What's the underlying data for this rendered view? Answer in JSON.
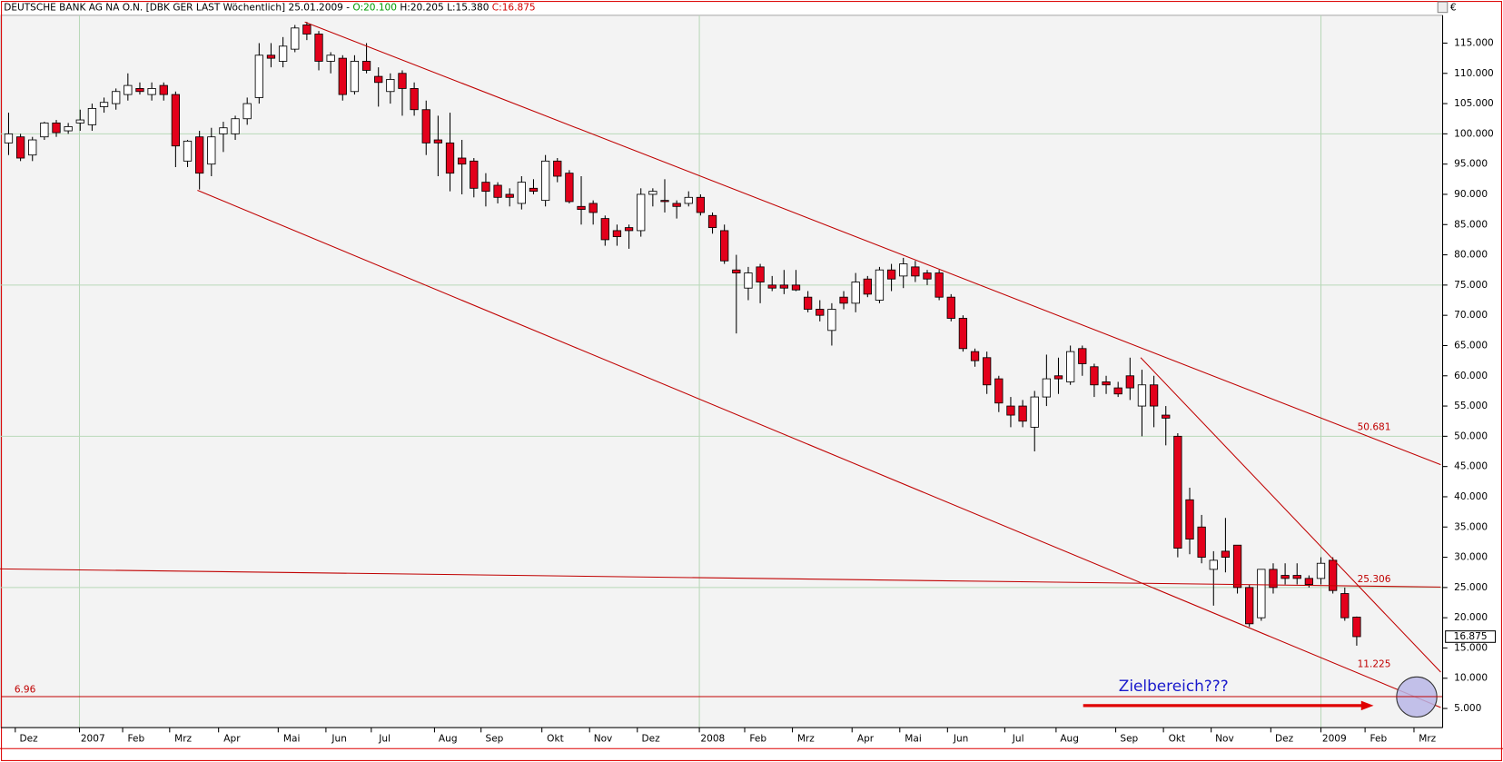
{
  "header": {
    "title": "DEUTSCHE BANK AG NA O.N. [DBK GER LAST Wöchentlich] 25.01.2009 -",
    "open": "O:20.100",
    "high": "H:20.205",
    "low": "L:15.380",
    "close": "C:16.875"
  },
  "chart_data": {
    "type": "candlestick",
    "categories": [
      null,
      null,
      null,
      null,
      null,
      null,
      null,
      null,
      null,
      null,
      null,
      null,
      null,
      null,
      null,
      null,
      null,
      null,
      null,
      null,
      null,
      null,
      null,
      null,
      null,
      null,
      null,
      null,
      null,
      null,
      null,
      null,
      null,
      null,
      null,
      null,
      null,
      null,
      null,
      null,
      null,
      null,
      null,
      null,
      null,
      null,
      null,
      null,
      null,
      null,
      null,
      null,
      null,
      null,
      null,
      null,
      null,
      null,
      null,
      null,
      null,
      null,
      null,
      null,
      null,
      null,
      null,
      null,
      null,
      null,
      null,
      null,
      null,
      null,
      null,
      null,
      null,
      null,
      null,
      null,
      null,
      null,
      null,
      null,
      null,
      null,
      null,
      null,
      null,
      null,
      null,
      null,
      null,
      null,
      null,
      null,
      null,
      null,
      null,
      null,
      null,
      null,
      null,
      null,
      null,
      null,
      null,
      null,
      null,
      null,
      null,
      null,
      null,
      null
    ],
    "open": [
      98.5,
      99.5,
      96.5,
      99.5,
      101.8,
      100.5,
      101.8,
      101.5,
      104.5,
      105,
      106.5,
      107.5,
      106.5,
      108,
      106.5,
      95.5,
      99.5,
      95,
      100,
      100,
      102.5,
      106,
      113,
      112,
      114,
      118,
      116.5,
      112,
      112.5,
      107,
      112,
      109.5,
      107,
      110,
      107.5,
      104,
      99,
      98.5,
      96,
      95.5,
      92,
      91.5,
      90,
      88.5,
      91,
      89,
      95.5,
      93.5,
      88,
      88.5,
      86,
      84,
      84.5,
      84,
      90,
      89,
      88.5,
      88.5,
      89.5,
      86.5,
      84,
      77.5,
      74.5,
      78,
      75,
      75,
      75,
      73,
      71,
      67.5,
      73,
      72,
      76,
      72.5,
      77.5,
      76.5,
      78,
      77,
      77,
      73,
      69.5,
      64,
      63,
      59.5,
      55,
      55,
      51.5,
      56.5,
      60,
      59,
      64.5,
      61.5,
      59,
      58,
      60,
      55,
      58.5,
      53.5,
      50,
      39.5,
      35,
      28,
      31,
      32,
      25,
      20,
      28,
      27,
      27,
      26.5,
      26.5,
      29.5,
      24,
      20.1
    ],
    "high": [
      103.5,
      100,
      99.5,
      102,
      102.3,
      101.8,
      104,
      105,
      106,
      107.5,
      110,
      108.5,
      108.5,
      108.5,
      107,
      99,
      100.5,
      101,
      102,
      103,
      106,
      115,
      115,
      116,
      118,
      118.5,
      117,
      113.5,
      113,
      113,
      115,
      111,
      110,
      110.5,
      108.5,
      105.5,
      103,
      103.5,
      99,
      96,
      93.5,
      92,
      91,
      93,
      92.5,
      96.5,
      96,
      94,
      93,
      89,
      86.5,
      85,
      85,
      91,
      91,
      92.5,
      89,
      90.5,
      90,
      87,
      85,
      80,
      78,
      78.5,
      76.5,
      77.5,
      77.5,
      74,
      72.5,
      72,
      74,
      77,
      76.5,
      78,
      78.5,
      79.5,
      79,
      77.5,
      77.5,
      73.5,
      70,
      64.5,
      64,
      60,
      56.5,
      56,
      57.5,
      63.5,
      63,
      65,
      65,
      62,
      60,
      59,
      63,
      61,
      60,
      55,
      50.5,
      41.5,
      37,
      31,
      36.5,
      32,
      25.5,
      28,
      29,
      29,
      29,
      27,
      30,
      30,
      25,
      20.205
    ],
    "low": [
      96.5,
      95.5,
      95.5,
      99,
      99.5,
      100,
      100.5,
      100.5,
      103.5,
      104,
      105.5,
      106.5,
      105.5,
      105.5,
      94.5,
      94.5,
      90.8,
      93,
      97,
      99,
      101.5,
      105,
      111,
      111,
      113.5,
      115.5,
      110.5,
      110,
      105.5,
      106.5,
      110,
      104.5,
      105,
      103,
      103,
      96.5,
      93,
      90.5,
      90,
      89.5,
      88,
      88.5,
      88,
      87.5,
      90,
      88,
      92,
      88.5,
      85,
      85,
      81.5,
      81.5,
      81,
      83,
      88,
      87,
      86,
      88,
      86.5,
      83.5,
      78.5,
      67,
      72.5,
      72,
      74,
      73.5,
      74,
      70.5,
      69,
      65,
      71,
      70.5,
      73,
      72,
      74,
      74.5,
      75.5,
      75,
      72.5,
      69,
      64,
      61.5,
      57,
      54,
      51.5,
      51.5,
      47.5,
      55,
      57,
      58.5,
      60,
      56.5,
      57,
      56.5,
      56,
      50,
      51.5,
      48.5,
      30,
      30.5,
      29,
      22,
      27.5,
      24,
      18.5,
      19.5,
      24,
      25.5,
      25.5,
      25,
      25.5,
      24,
      19.5,
      15.38
    ],
    "close": [
      100,
      96,
      99,
      101.8,
      100.2,
      101.2,
      102.3,
      104.2,
      105.2,
      107,
      108,
      107,
      107.5,
      106.5,
      98,
      98.8,
      93.5,
      99.5,
      101,
      102.5,
      105,
      113,
      112.5,
      114.5,
      117.5,
      116.5,
      112,
      113,
      106.5,
      112,
      110.5,
      108.5,
      109,
      107.5,
      104,
      98.5,
      98.5,
      93.5,
      95,
      91,
      90.5,
      89.5,
      89.5,
      92,
      90.5,
      95.5,
      93,
      88.8,
      87.5,
      87,
      82.5,
      83,
      84,
      90,
      90.5,
      88.8,
      88,
      89.5,
      87,
      84.5,
      79,
      77,
      77,
      75.5,
      74.5,
      74.5,
      74.2,
      71,
      70,
      71,
      72,
      75.5,
      73.5,
      77.5,
      76,
      78.5,
      76.5,
      76,
      73,
      69.5,
      64.5,
      62.5,
      58.5,
      55.5,
      53.5,
      52.5,
      56.5,
      59.5,
      59.5,
      64,
      62,
      58.5,
      58.5,
      57,
      58,
      58.5,
      55,
      53,
      31.5,
      33,
      30,
      29.5,
      30,
      25,
      19,
      28,
      25,
      26.5,
      26.5,
      25.5,
      29,
      24.5,
      20,
      16.875
    ],
    "up_color": "#ffffff",
    "down_color": "#e3001b",
    "ylim": [
      1.84,
      119.6
    ],
    "yticks": [
      {
        "value": 5,
        "label": "5.000"
      },
      {
        "value": 10,
        "label": "10.000"
      },
      {
        "value": 15,
        "label": "15.000"
      },
      {
        "value": 20,
        "label": "20.000"
      },
      {
        "value": 25,
        "label": "25.000"
      },
      {
        "value": 30,
        "label": "30.000"
      },
      {
        "value": 35,
        "label": "35.000"
      },
      {
        "value": 40,
        "label": "40.000"
      },
      {
        "value": 45,
        "label": "45.000"
      },
      {
        "value": 50,
        "label": "50.000"
      },
      {
        "value": 55,
        "label": "55.000"
      },
      {
        "value": 60,
        "label": "60.000"
      },
      {
        "value": 65,
        "label": "65.000"
      },
      {
        "value": 70,
        "label": "70.000"
      },
      {
        "value": 75,
        "label": "75.000"
      },
      {
        "value": 80,
        "label": "80.000"
      },
      {
        "value": 85,
        "label": "85.000"
      },
      {
        "value": 90,
        "label": "90.000"
      },
      {
        "value": 95,
        "label": "95.000"
      },
      {
        "value": 100,
        "label": "100.000"
      },
      {
        "value": 105,
        "label": "105.000"
      },
      {
        "value": 110,
        "label": "110.000"
      },
      {
        "value": 115,
        "label": "115.000"
      }
    ],
    "ygrid": [
      25,
      50,
      75,
      100
    ],
    "xlim": [
      -0.64,
      120.2
    ],
    "xticks": [
      {
        "value": 0.56,
        "label": "Dez"
      },
      {
        "value": 5.94,
        "label": "2007"
      },
      {
        "value": 9.56,
        "label": "Feb"
      },
      {
        "value": 13.5,
        "label": "Mrz"
      },
      {
        "value": 17.6,
        "label": "Apr"
      },
      {
        "value": 22.6,
        "label": "Mai"
      },
      {
        "value": 26.6,
        "label": "Jun"
      },
      {
        "value": 30.4,
        "label": "Jul"
      },
      {
        "value": 35.7,
        "label": "Aug"
      },
      {
        "value": 39.6,
        "label": "Sep"
      },
      {
        "value": 44.7,
        "label": "Okt"
      },
      {
        "value": 48.7,
        "label": "Nov"
      },
      {
        "value": 52.7,
        "label": "Dez"
      },
      {
        "value": 57.9,
        "label": "2008"
      },
      {
        "value": 61.7,
        "label": "Feb"
      },
      {
        "value": 65.7,
        "label": "Mrz"
      },
      {
        "value": 70.7,
        "label": "Apr"
      },
      {
        "value": 74.7,
        "label": "Mai"
      },
      {
        "value": 78.7,
        "label": "Jun"
      },
      {
        "value": 83.5,
        "label": "Jul"
      },
      {
        "value": 87.8,
        "label": "Aug"
      },
      {
        "value": 92.8,
        "label": "Sep"
      },
      {
        "value": 96.8,
        "label": "Okt"
      },
      {
        "value": 100.8,
        "label": "Nov"
      },
      {
        "value": 105.8,
        "label": "Dez"
      },
      {
        "value": 110.0,
        "label": "2009"
      },
      {
        "value": 113.7,
        "label": "Feb"
      },
      {
        "value": 117.8,
        "label": "Mrz"
      }
    ],
    "currency": "€",
    "levels": [
      {
        "value": 6.96,
        "label": "6.96"
      }
    ],
    "annotations": {
      "channel_top": "50.681",
      "support": "25.306",
      "channel_bottom": "11.225",
      "target": "Zielbereich???"
    }
  }
}
